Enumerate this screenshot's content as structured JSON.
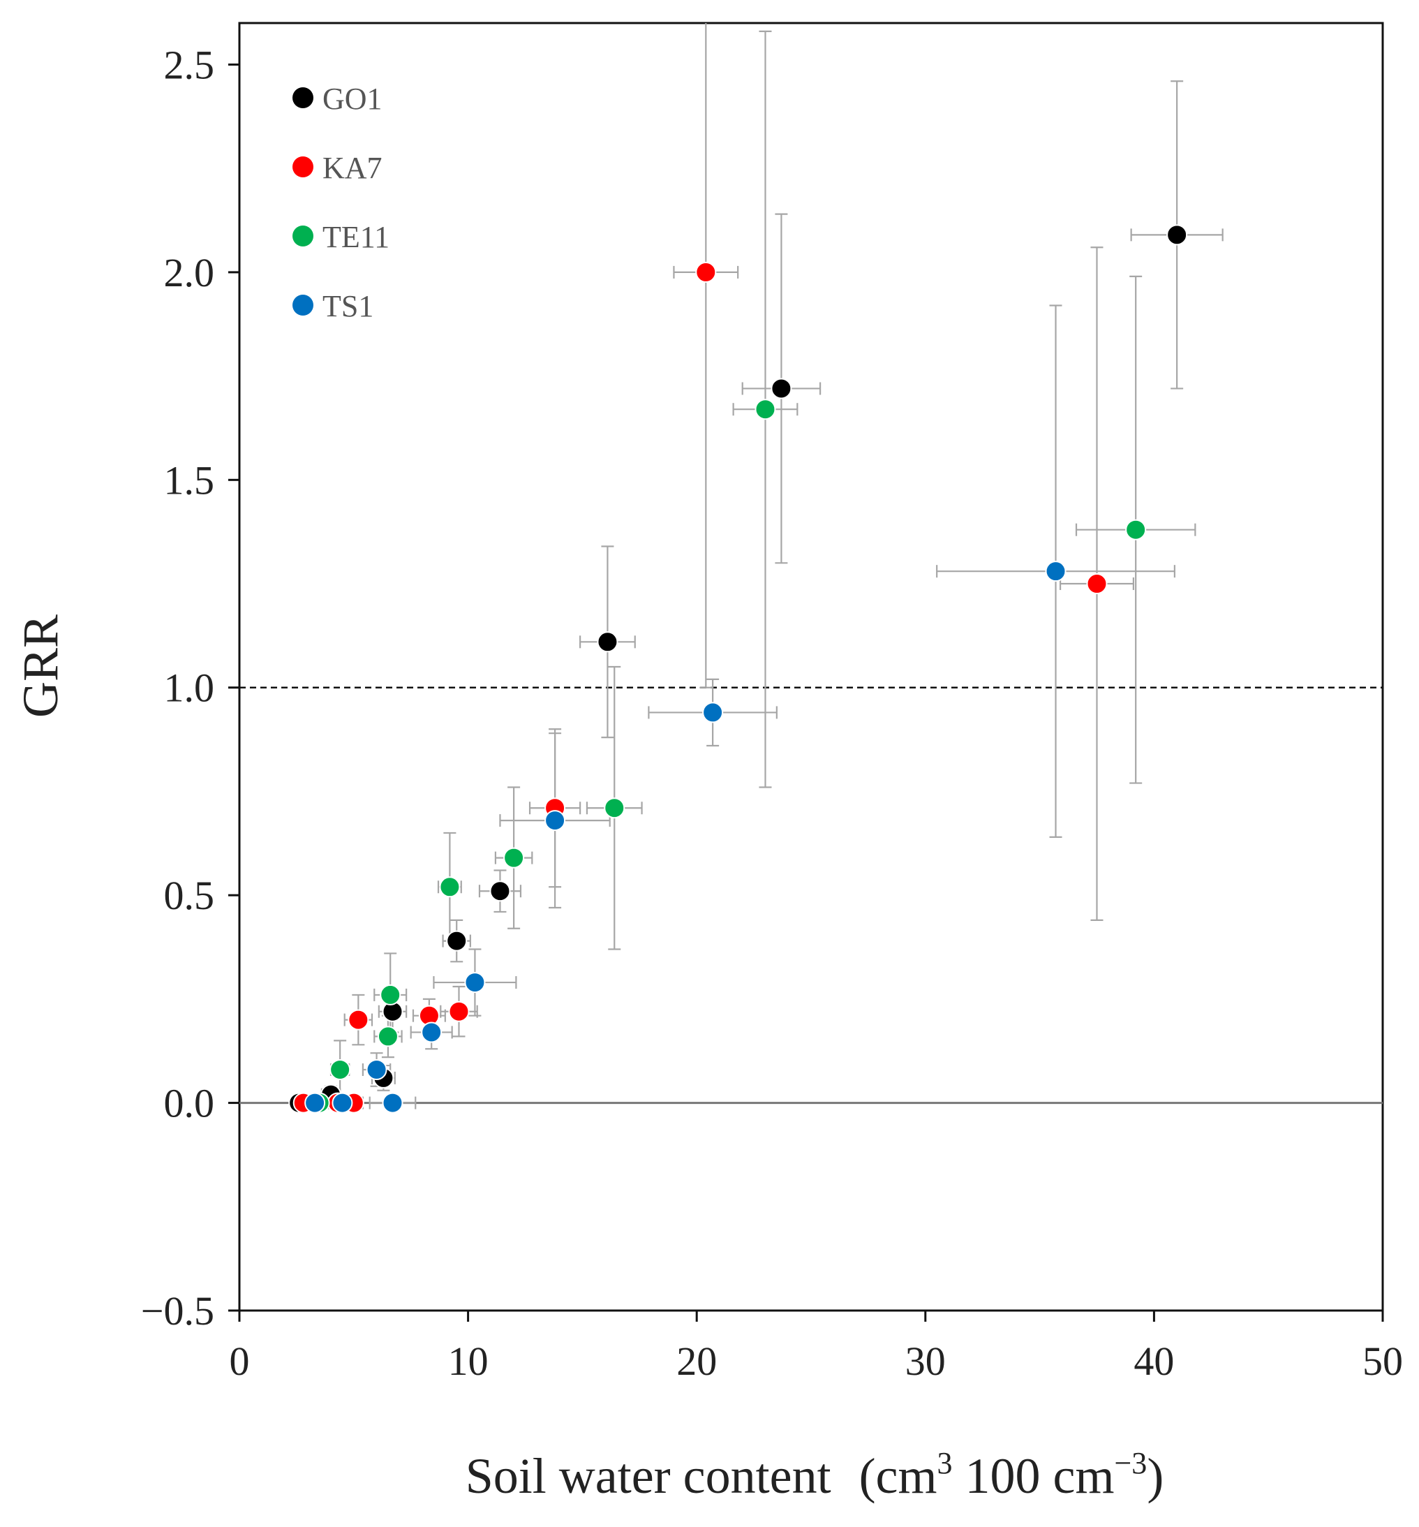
{
  "chart_data": {
    "type": "scatter",
    "title": "",
    "xlabel": "Soil water content",
    "xlabel_unit": {
      "open": "(cm",
      "sup1": "3",
      "mid": " 100 cm",
      "sup2": "−3",
      "close": ")"
    },
    "ylabel": "GRR",
    "xlim": [
      0,
      50
    ],
    "ylim": [
      -0.5,
      2.6
    ],
    "x_ticks": [
      0,
      10,
      20,
      30,
      40,
      50
    ],
    "x_tick_labels": [
      "0",
      "10",
      "20",
      "30",
      "40",
      "50"
    ],
    "y_ticks": [
      -0.5,
      0.0,
      0.5,
      1.0,
      1.5,
      2.0,
      2.5
    ],
    "y_tick_labels": [
      "−0.5",
      "0.0",
      "0.5",
      "1.0",
      "1.5",
      "2.0",
      "2.5"
    ],
    "reference_lines": [
      {
        "y": 0.0,
        "style": "solid"
      },
      {
        "y": 1.0,
        "style": "dashed"
      }
    ],
    "legend_position": "top-left",
    "grid": false,
    "series": [
      {
        "name": "GO1",
        "color": "#000000",
        "points": [
          {
            "x": 2.6,
            "y": 0.0,
            "xerr": 0.3,
            "yerr": 0.0
          },
          {
            "x": 4.0,
            "y": 0.02,
            "xerr": 0.4,
            "yerr": 0.02
          },
          {
            "x": 6.3,
            "y": 0.06,
            "xerr": 0.5,
            "yerr": 0.03
          },
          {
            "x": 6.7,
            "y": 0.22,
            "xerr": 0.6,
            "yerr": 0.05
          },
          {
            "x": 9.5,
            "y": 0.39,
            "xerr": 0.6,
            "yerr": 0.05
          },
          {
            "x": 11.4,
            "y": 0.51,
            "xerr": 0.9,
            "yerr": 0.05
          },
          {
            "x": 16.1,
            "y": 1.11,
            "xerr": 1.2,
            "yerr": 0.23
          },
          {
            "x": 23.7,
            "y": 1.72,
            "xerr": 1.7,
            "yerr": 0.42
          },
          {
            "x": 41.0,
            "y": 2.09,
            "xerr": 2.0,
            "yerr": 0.37
          }
        ]
      },
      {
        "name": "KA7",
        "color": "#ff0000",
        "points": [
          {
            "x": 2.8,
            "y": 0.0,
            "xerr": 0.3,
            "yerr": 0.0
          },
          {
            "x": 4.3,
            "y": 0.0,
            "xerr": 0.4,
            "yerr": 0.0
          },
          {
            "x": 5.0,
            "y": 0.0,
            "xerr": 0.4,
            "yerr": 0.0
          },
          {
            "x": 5.2,
            "y": 0.2,
            "xerr": 0.6,
            "yerr": 0.06
          },
          {
            "x": 8.3,
            "y": 0.21,
            "xerr": 0.7,
            "yerr": 0.04
          },
          {
            "x": 9.6,
            "y": 0.22,
            "xerr": 0.8,
            "yerr": 0.06
          },
          {
            "x": 13.8,
            "y": 0.71,
            "xerr": 1.1,
            "yerr": 0.19
          },
          {
            "x": 20.4,
            "y": 2.0,
            "xerr": 1.4,
            "yerr": 1.0
          },
          {
            "x": 37.5,
            "y": 1.25,
            "xerr": 1.6,
            "yerr": 0.81
          }
        ]
      },
      {
        "name": "TE11",
        "color": "#00b050",
        "points": [
          {
            "x": 3.5,
            "y": 0.0,
            "xerr": 0.4,
            "yerr": 0.0
          },
          {
            "x": 4.4,
            "y": 0.08,
            "xerr": 0.4,
            "yerr": 0.07
          },
          {
            "x": 6.5,
            "y": 0.16,
            "xerr": 0.6,
            "yerr": 0.05
          },
          {
            "x": 6.6,
            "y": 0.26,
            "xerr": 0.7,
            "yerr": 0.1
          },
          {
            "x": 9.2,
            "y": 0.52,
            "xerr": 0.5,
            "yerr": 0.13
          },
          {
            "x": 12.0,
            "y": 0.59,
            "xerr": 0.8,
            "yerr": 0.17
          },
          {
            "x": 16.4,
            "y": 0.71,
            "xerr": 1.2,
            "yerr": 0.34
          },
          {
            "x": 23.0,
            "y": 1.67,
            "xerr": 1.4,
            "yerr": 0.91
          },
          {
            "x": 39.2,
            "y": 1.38,
            "xerr": 2.6,
            "yerr": 0.61
          }
        ]
      },
      {
        "name": "TS1",
        "color": "#0070c0",
        "points": [
          {
            "x": 3.3,
            "y": 0.0,
            "xerr": 0.4,
            "yerr": 0.0
          },
          {
            "x": 4.5,
            "y": 0.0,
            "xerr": 0.5,
            "yerr": 0.0
          },
          {
            "x": 6.7,
            "y": 0.0,
            "xerr": 1.0,
            "yerr": 0.0
          },
          {
            "x": 6.0,
            "y": 0.08,
            "xerr": 0.6,
            "yerr": 0.04
          },
          {
            "x": 8.4,
            "y": 0.17,
            "xerr": 0.9,
            "yerr": 0.04
          },
          {
            "x": 10.3,
            "y": 0.29,
            "xerr": 1.8,
            "yerr": 0.08
          },
          {
            "x": 13.8,
            "y": 0.68,
            "xerr": 2.4,
            "yerr": 0.21
          },
          {
            "x": 20.7,
            "y": 0.94,
            "xerr": 2.8,
            "yerr": 0.08
          },
          {
            "x": 35.7,
            "y": 1.28,
            "xerr": 5.2,
            "yerr": 0.64
          }
        ]
      }
    ]
  }
}
